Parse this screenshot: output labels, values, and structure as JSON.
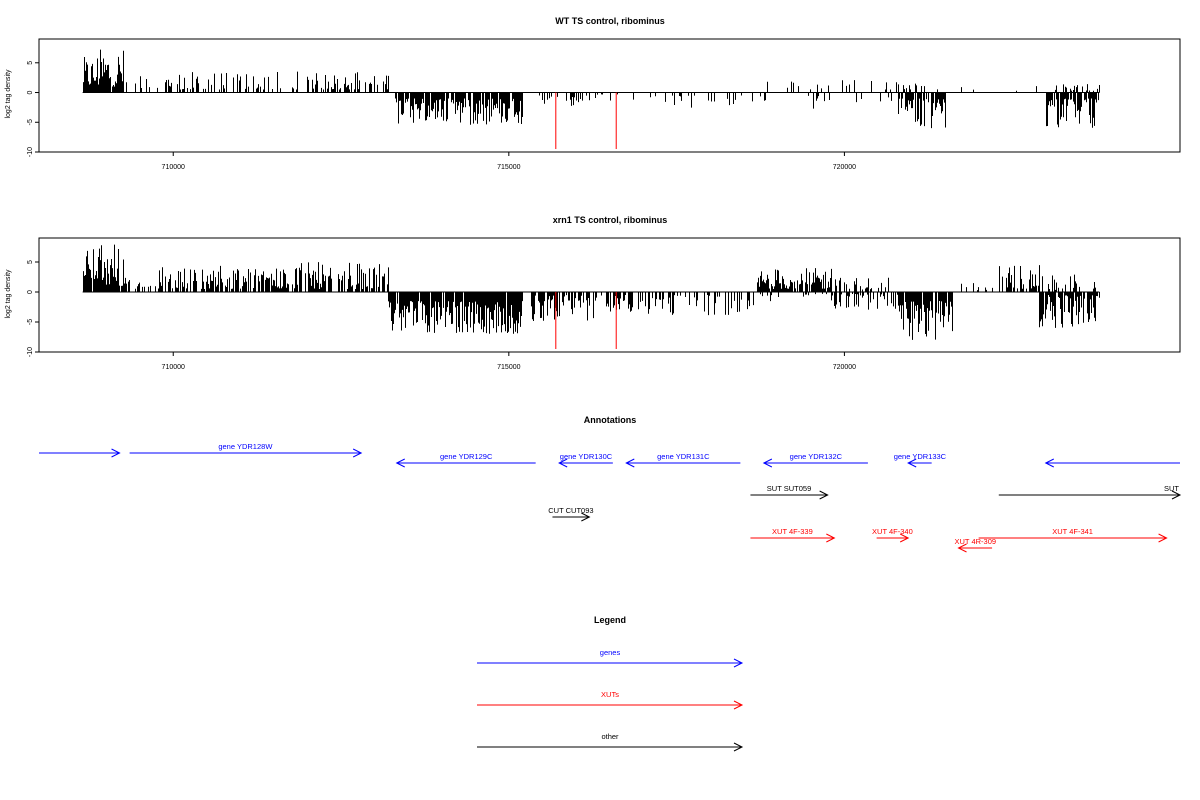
{
  "chart_data": [
    {
      "type": "bar",
      "title": "WT TS control, ribominus",
      "ylabel": "log2 tag density",
      "xlabel": "",
      "xlim": [
        708000,
        725000
      ],
      "ylim": [
        -10,
        9
      ],
      "yticks": [
        -10,
        -5,
        0,
        5
      ],
      "ytick_labels": [
        "-10",
        "-5",
        "0",
        "5"
      ],
      "xticks": [
        710000,
        715000,
        720000
      ],
      "xtick_labels": [
        "710000",
        "715000",
        "720000"
      ],
      "baseline_range": [
        708650,
        723800
      ],
      "bar_color": "#000000",
      "highlight_color": "#ff0000",
      "series": [
        {
          "values": [
            {
              "from": 708650,
              "to": 708850,
              "min": 1.0,
              "max": 6.0,
              "sign": 1,
              "density": 0.9
            },
            {
              "from": 708850,
              "to": 709250,
              "min": 1.0,
              "max": 7.5,
              "sign": 1,
              "density": 0.9
            },
            {
              "from": 709250,
              "to": 709800,
              "min": 0.5,
              "max": 3.0,
              "sign": 1,
              "density": 0.25
            },
            {
              "from": 709800,
              "to": 711700,
              "min": 0.5,
              "max": 3.5,
              "sign": 1,
              "density": 0.4
            },
            {
              "from": 711700,
              "to": 713200,
              "min": 0.5,
              "max": 3.6,
              "sign": 1,
              "density": 0.45
            },
            {
              "from": 713300,
              "to": 715200,
              "min": 1.0,
              "max": 5.5,
              "sign": -1,
              "density": 0.85
            },
            {
              "from": 715300,
              "to": 716200,
              "min": 0.5,
              "max": 2.5,
              "sign": -1,
              "density": 0.2
            },
            {
              "from": 716200,
              "to": 717100,
              "min": 0.3,
              "max": 2.0,
              "sign": -1,
              "density": 0.1
            },
            {
              "from": 717100,
              "to": 718300,
              "min": 0.5,
              "max": 3.0,
              "sign": -1,
              "density": 0.2
            },
            {
              "from": 718300,
              "to": 719000,
              "min": 0.5,
              "max": 2.5,
              "sign": -1,
              "density": 0.15
            },
            {
              "from": 718800,
              "to": 719400,
              "min": 0.5,
              "max": 2.0,
              "sign": 1,
              "density": 0.15
            },
            {
              "from": 719400,
              "to": 720800,
              "min": 0.5,
              "max": 3.0,
              "sign": -1,
              "density": 0.12
            },
            {
              "from": 719400,
              "to": 720800,
              "min": 0.5,
              "max": 2.3,
              "sign": 1,
              "density": 0.08
            },
            {
              "from": 720800,
              "to": 721500,
              "min": 1.0,
              "max": 6.2,
              "sign": -1,
              "density": 0.8
            },
            {
              "from": 720800,
              "to": 721500,
              "min": 0.5,
              "max": 1.5,
              "sign": 1,
              "density": 0.2
            },
            {
              "from": 721500,
              "to": 723000,
              "min": 0.3,
              "max": 1.5,
              "sign": 1,
              "density": 0.06
            },
            {
              "from": 723000,
              "to": 723800,
              "min": 1.0,
              "max": 6.0,
              "sign": -1,
              "density": 0.85
            },
            {
              "from": 723000,
              "to": 723800,
              "min": 0.3,
              "max": 1.5,
              "sign": 1,
              "density": 0.3
            }
          ],
          "highlights": [
            {
              "x": 715700,
              "y": -9.5
            },
            {
              "x": 716600,
              "y": -9.5
            }
          ]
        }
      ]
    },
    {
      "type": "bar",
      "title": "xrn1 TS control, ribominus",
      "ylabel": "log2 tag density",
      "xlabel": "",
      "xlim": [
        708000,
        725000
      ],
      "ylim": [
        -10,
        9
      ],
      "yticks": [
        -10,
        -5,
        0,
        5
      ],
      "ytick_labels": [
        "-10",
        "-5",
        "0",
        "5"
      ],
      "xticks": [
        710000,
        715000,
        720000
      ],
      "xtick_labels": [
        "710000",
        "715000",
        "720000"
      ],
      "baseline_range": [
        708650,
        723800
      ],
      "bar_color": "#000000",
      "highlight_color": "#ff0000",
      "series": [
        {
          "values": [
            {
              "from": 708650,
              "to": 708900,
              "min": 1.5,
              "max": 7.5,
              "sign": 1,
              "density": 0.95
            },
            {
              "from": 708900,
              "to": 709300,
              "min": 1.0,
              "max": 8.5,
              "sign": 1,
              "density": 0.95
            },
            {
              "from": 709300,
              "to": 709700,
              "min": 0.5,
              "max": 3.0,
              "sign": 1,
              "density": 0.3
            },
            {
              "from": 709700,
              "to": 711800,
              "min": 0.5,
              "max": 4.5,
              "sign": 1,
              "density": 0.65
            },
            {
              "from": 711800,
              "to": 713200,
              "min": 0.5,
              "max": 5.0,
              "sign": 1,
              "density": 0.7
            },
            {
              "from": 713200,
              "to": 715200,
              "min": 1.5,
              "max": 7.0,
              "sign": -1,
              "density": 0.95
            },
            {
              "from": 715300,
              "to": 716800,
              "min": 0.5,
              "max": 5.0,
              "sign": -1,
              "density": 0.7
            },
            {
              "from": 716800,
              "to": 718700,
              "min": 0.5,
              "max": 4.0,
              "sign": -1,
              "density": 0.45
            },
            {
              "from": 718700,
              "to": 719800,
              "min": 0.5,
              "max": 4.0,
              "sign": 1,
              "density": 0.8
            },
            {
              "from": 718700,
              "to": 719800,
              "min": 0.3,
              "max": 2.0,
              "sign": -1,
              "density": 0.3
            },
            {
              "from": 719800,
              "to": 720800,
              "min": 0.3,
              "max": 3.0,
              "sign": -1,
              "density": 0.35
            },
            {
              "from": 719800,
              "to": 720800,
              "min": 0.3,
              "max": 2.5,
              "sign": 1,
              "density": 0.25
            },
            {
              "from": 720800,
              "to": 721600,
              "min": 1.5,
              "max": 8.0,
              "sign": -1,
              "density": 0.9
            },
            {
              "from": 721600,
              "to": 722300,
              "min": 0.3,
              "max": 2.0,
              "sign": 1,
              "density": 0.15
            },
            {
              "from": 722300,
              "to": 722900,
              "min": 0.5,
              "max": 4.5,
              "sign": 1,
              "density": 0.65
            },
            {
              "from": 722900,
              "to": 723800,
              "min": 0.5,
              "max": 6.0,
              "sign": -1,
              "density": 0.85
            },
            {
              "from": 722900,
              "to": 723800,
              "min": 0.3,
              "max": 3.0,
              "sign": 1,
              "density": 0.4
            }
          ],
          "highlights": [
            {
              "x": 715700,
              "y": -9.5
            },
            {
              "x": 716600,
              "y": -9.5
            }
          ]
        }
      ]
    }
  ],
  "annotations": {
    "title": "Annotations",
    "features": [
      {
        "label": "",
        "kind": "gene",
        "from": 708000,
        "to": 709200,
        "strand": "+",
        "row": 0
      },
      {
        "label": "gene YDR128W",
        "kind": "gene",
        "from": 709350,
        "to": 712800,
        "strand": "+",
        "row": 0
      },
      {
        "label": "gene YDR129C",
        "kind": "gene",
        "from": 713330,
        "to": 715400,
        "strand": "-",
        "row": 0
      },
      {
        "label": "gene YDR130C",
        "kind": "gene",
        "from": 715750,
        "to": 716550,
        "strand": "-",
        "row": 0
      },
      {
        "label": "gene YDR131C",
        "kind": "gene",
        "from": 716750,
        "to": 718450,
        "strand": "-",
        "row": 0
      },
      {
        "label": "gene YDR132C",
        "kind": "gene",
        "from": 718800,
        "to": 720350,
        "strand": "-",
        "row": 0
      },
      {
        "label": "gene YDR133C",
        "kind": "gene",
        "from": 720950,
        "to": 721300,
        "strand": "-",
        "row": 0
      },
      {
        "label": "",
        "kind": "gene",
        "from": 723000,
        "to": 725000,
        "strand": "-",
        "row": 0
      },
      {
        "label": "SUT SUT059",
        "kind": "other",
        "from": 718600,
        "to": 719750,
        "strand": "+",
        "row": 1
      },
      {
        "label": "SUT",
        "kind": "other",
        "from": 722300,
        "to": 725000,
        "strand": "+",
        "row": 1
      },
      {
        "label": "CUT CUT093",
        "kind": "other",
        "from": 715650,
        "to": 716200,
        "strand": "+",
        "row": 2
      },
      {
        "label": "XUT 4F-339",
        "kind": "xut",
        "from": 718600,
        "to": 719850,
        "strand": "+",
        "row": 3
      },
      {
        "label": "XUT 4F-340",
        "kind": "xut",
        "from": 720480,
        "to": 720950,
        "strand": "+",
        "row": 3
      },
      {
        "label": "XUT 4R-309",
        "kind": "xut",
        "from": 721700,
        "to": 722200,
        "strand": "-",
        "row": 4
      },
      {
        "label": "XUT 4F-341",
        "kind": "xut",
        "from": 722000,
        "to": 724800,
        "strand": "+",
        "row": 3
      }
    ]
  },
  "legend": {
    "title": "Legend",
    "items": [
      {
        "label": "genes",
        "kind": "gene"
      },
      {
        "label": "XUTs",
        "kind": "xut"
      },
      {
        "label": "other",
        "kind": "other"
      }
    ]
  },
  "colors": {
    "gene": "#0000ff",
    "xut": "#ff0000",
    "other": "#000000"
  }
}
